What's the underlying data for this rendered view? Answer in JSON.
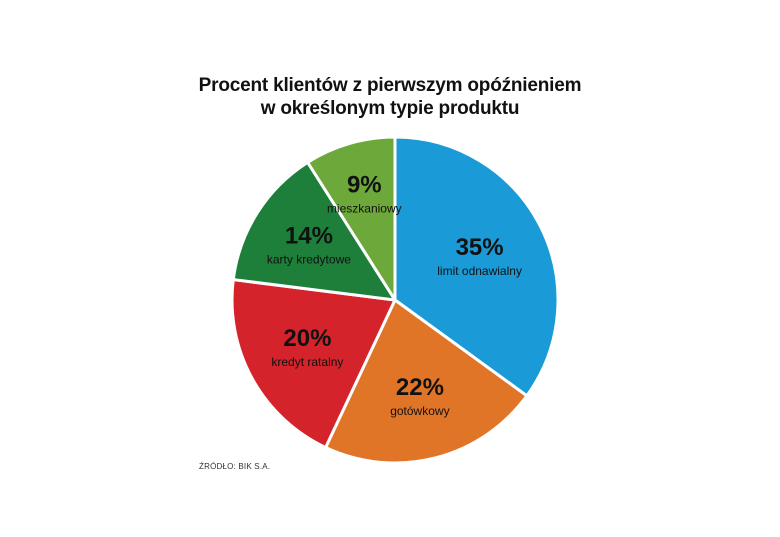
{
  "title": {
    "line1": "Procent klientów z pierwszym opóźnieniem",
    "line2": "w określonym typie produktu"
  },
  "source": "ŹRÓDŁO: BIK S.A.",
  "chart_data": {
    "type": "pie",
    "title": "Procent klientów z pierwszym opóźnieniem w określonym typie produktu",
    "categories": [
      "limit odnawialny",
      "gotówkowy",
      "kredyt ratalny",
      "karty kredytowe",
      "mieszkaniowy"
    ],
    "values": [
      35,
      22,
      20,
      14,
      9
    ],
    "value_labels": [
      "35%",
      "22%",
      "20%",
      "14%",
      "9%"
    ],
    "colors": [
      "#1a9ad6",
      "#e07528",
      "#d4232a",
      "#1d7f3a",
      "#6ca83a"
    ],
    "start": "12 o'clock, clockwise"
  }
}
